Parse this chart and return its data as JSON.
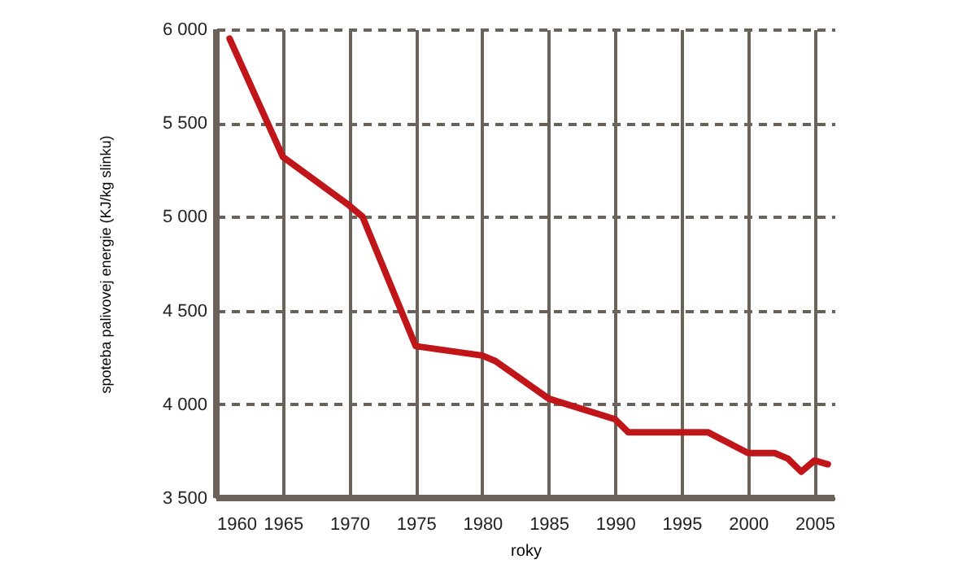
{
  "chart_data": {
    "type": "line",
    "xlabel": "roky",
    "ylabel": "spoteba palivovej energie (KJ/kg slinku)",
    "x": [
      1961,
      1965,
      1970,
      1971,
      1975,
      1980,
      1981,
      1985,
      1990,
      1991,
      1997,
      2000,
      2002,
      2003,
      2004,
      2005,
      2006
    ],
    "series": [
      {
        "color": "#c0161a",
        "values": [
          5950,
          5320,
          5060,
          5000,
          4310,
          4260,
          4230,
          4030,
          3920,
          3850,
          3850,
          3740,
          3740,
          3710,
          3640,
          3700,
          3680
        ]
      }
    ],
    "xlim": [
      1960,
      2006.5
    ],
    "xticks": [
      1960,
      1965,
      1970,
      1975,
      1980,
      1985,
      1990,
      1995,
      2000,
      2005
    ],
    "ylim": [
      3500,
      6000
    ],
    "yticks": [
      {
        "value": 3500,
        "label": "3 500"
      },
      {
        "value": 4000,
        "label": "4 000"
      },
      {
        "value": 4500,
        "label": "4 500"
      },
      {
        "value": 5000,
        "label": "5 000"
      },
      {
        "value": 5500,
        "label": "5 500"
      },
      {
        "value": 6000,
        "label": "6 000"
      }
    ],
    "grid": true,
    "marker": "none",
    "line_style": "solid"
  }
}
